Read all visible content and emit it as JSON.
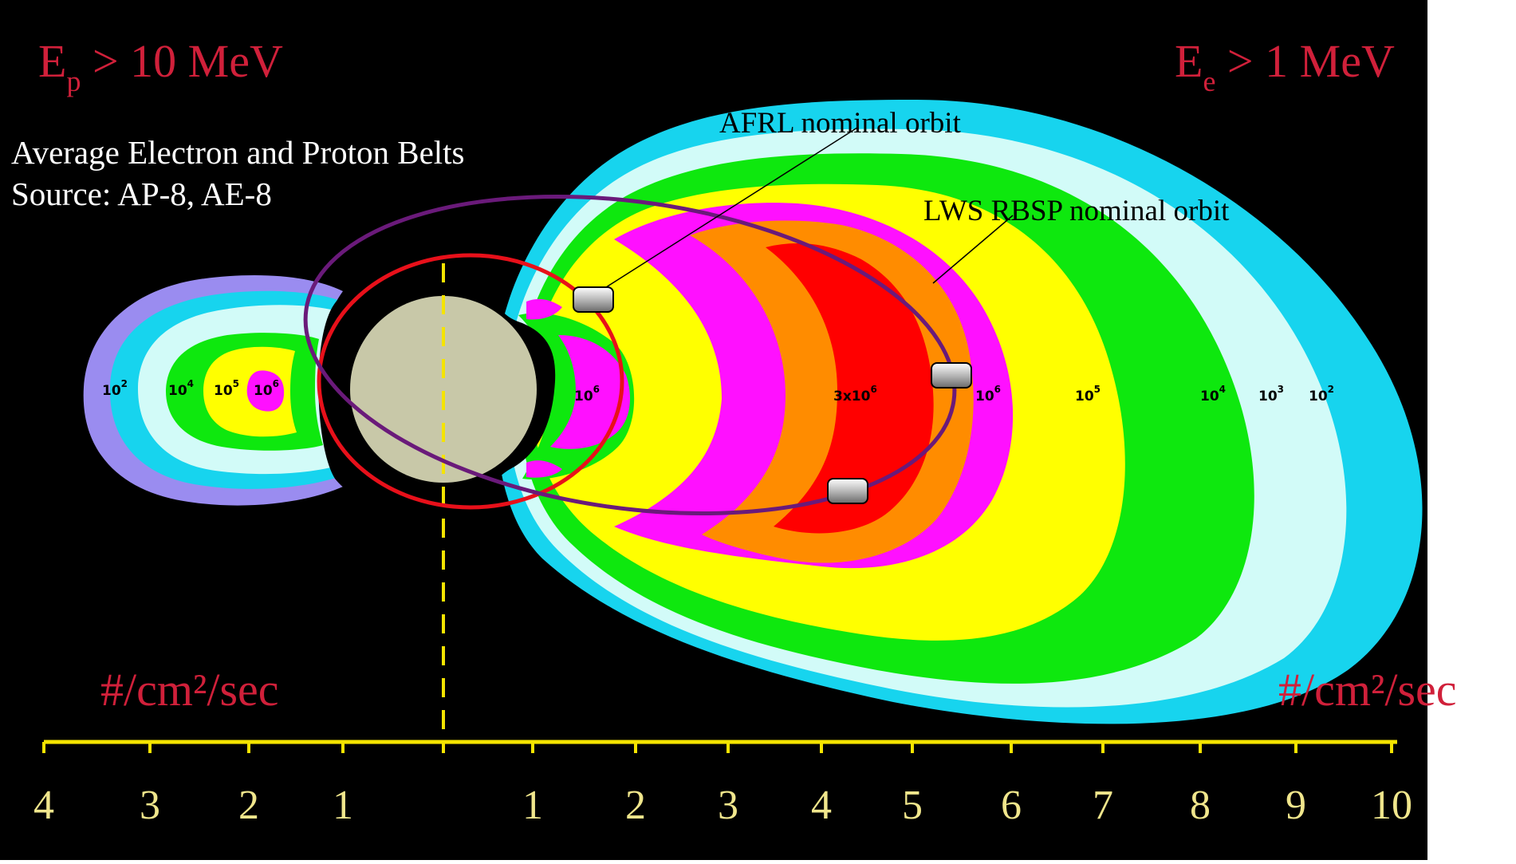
{
  "titles": {
    "proton_threshold_base": "E",
    "proton_threshold_sub": "p",
    "proton_threshold_rest": " > 10 MeV",
    "electron_threshold_base": "E",
    "electron_threshold_sub": "e",
    "electron_threshold_rest": " > 1 MeV"
  },
  "source_note": {
    "line1": "Average Electron and Proton Belts",
    "line2": "Source:  AP-8, AE-8"
  },
  "orbits": {
    "afrl_label": "AFRL nominal orbit",
    "rbsp_label": "LWS RBSP nominal orbit",
    "afrl_color": "#e8101a",
    "rbsp_color": "#6a1a7a"
  },
  "units": {
    "left": "#/cm²/sec",
    "right": "#/cm²/sec"
  },
  "belt_labels": {
    "proton": [
      {
        "base": "10",
        "exp": "2"
      },
      {
        "base": "10",
        "exp": "4"
      },
      {
        "base": "10",
        "exp": "5"
      },
      {
        "base": "10",
        "exp": "6"
      }
    ],
    "electron": [
      {
        "base": "10",
        "exp": "6"
      },
      {
        "base": "3x10",
        "exp": "6"
      },
      {
        "base": "10",
        "exp": "6"
      },
      {
        "base": "10",
        "exp": "5"
      },
      {
        "base": "10",
        "exp": "4"
      },
      {
        "base": "10",
        "exp": "3"
      },
      {
        "base": "10",
        "exp": "2"
      }
    ]
  },
  "axis": {
    "left_ticks": [
      "4",
      "3",
      "2",
      "1"
    ],
    "right_ticks": [
      "1",
      "2",
      "3",
      "4",
      "5",
      "6",
      "7",
      "8",
      "9",
      "10"
    ],
    "color": "#f5e400",
    "label_color": "#f0e68c"
  },
  "colors": {
    "background": "#000000",
    "earth": "#c8c8a8",
    "flux_10e2": "#17d4ee",
    "flux_10e3": "#d2fbf8",
    "flux_10e4": "#0ee80e",
    "flux_10e5": "#ffff00",
    "flux_10e6": "#ff10ff",
    "flux_high": "#ff8c00",
    "flux_peak": "#ff0000",
    "proton_outer": "#9a8cf0"
  }
}
